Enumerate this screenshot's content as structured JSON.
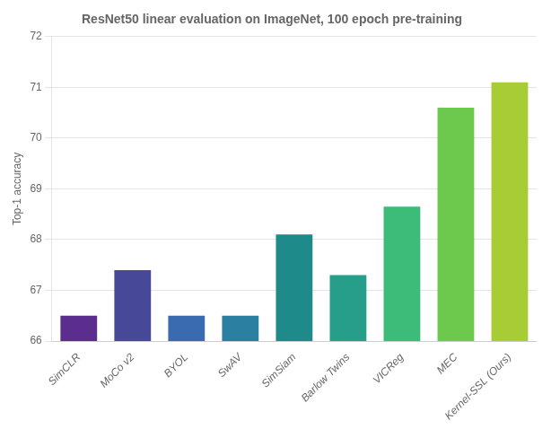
{
  "chart_data": {
    "type": "bar",
    "title": "ResNet50 linear evaluation on ImageNet, 100 epoch pre-training",
    "ylabel": "Top-1 accuracy",
    "categories": [
      "SimCLR",
      "MoCo v2",
      "BYOL",
      "SwAV",
      "SimSiam",
      "Barlow Twins",
      "VICReg",
      "MEC",
      "Kernel-SSL (Ours)"
    ],
    "values": [
      66.5,
      67.4,
      66.5,
      66.5,
      68.1,
      67.3,
      68.65,
      70.6,
      71.1
    ],
    "colors": [
      "#5b2d8e",
      "#484898",
      "#3a6ab0",
      "#2b7fa0",
      "#1e8a8a",
      "#279e8a",
      "#3dbb78",
      "#6cc94e",
      "#a8cc35"
    ],
    "ylim": [
      66,
      72
    ],
    "yticks": [
      66,
      67,
      68,
      69,
      70,
      71,
      72
    ],
    "grid": "y"
  }
}
